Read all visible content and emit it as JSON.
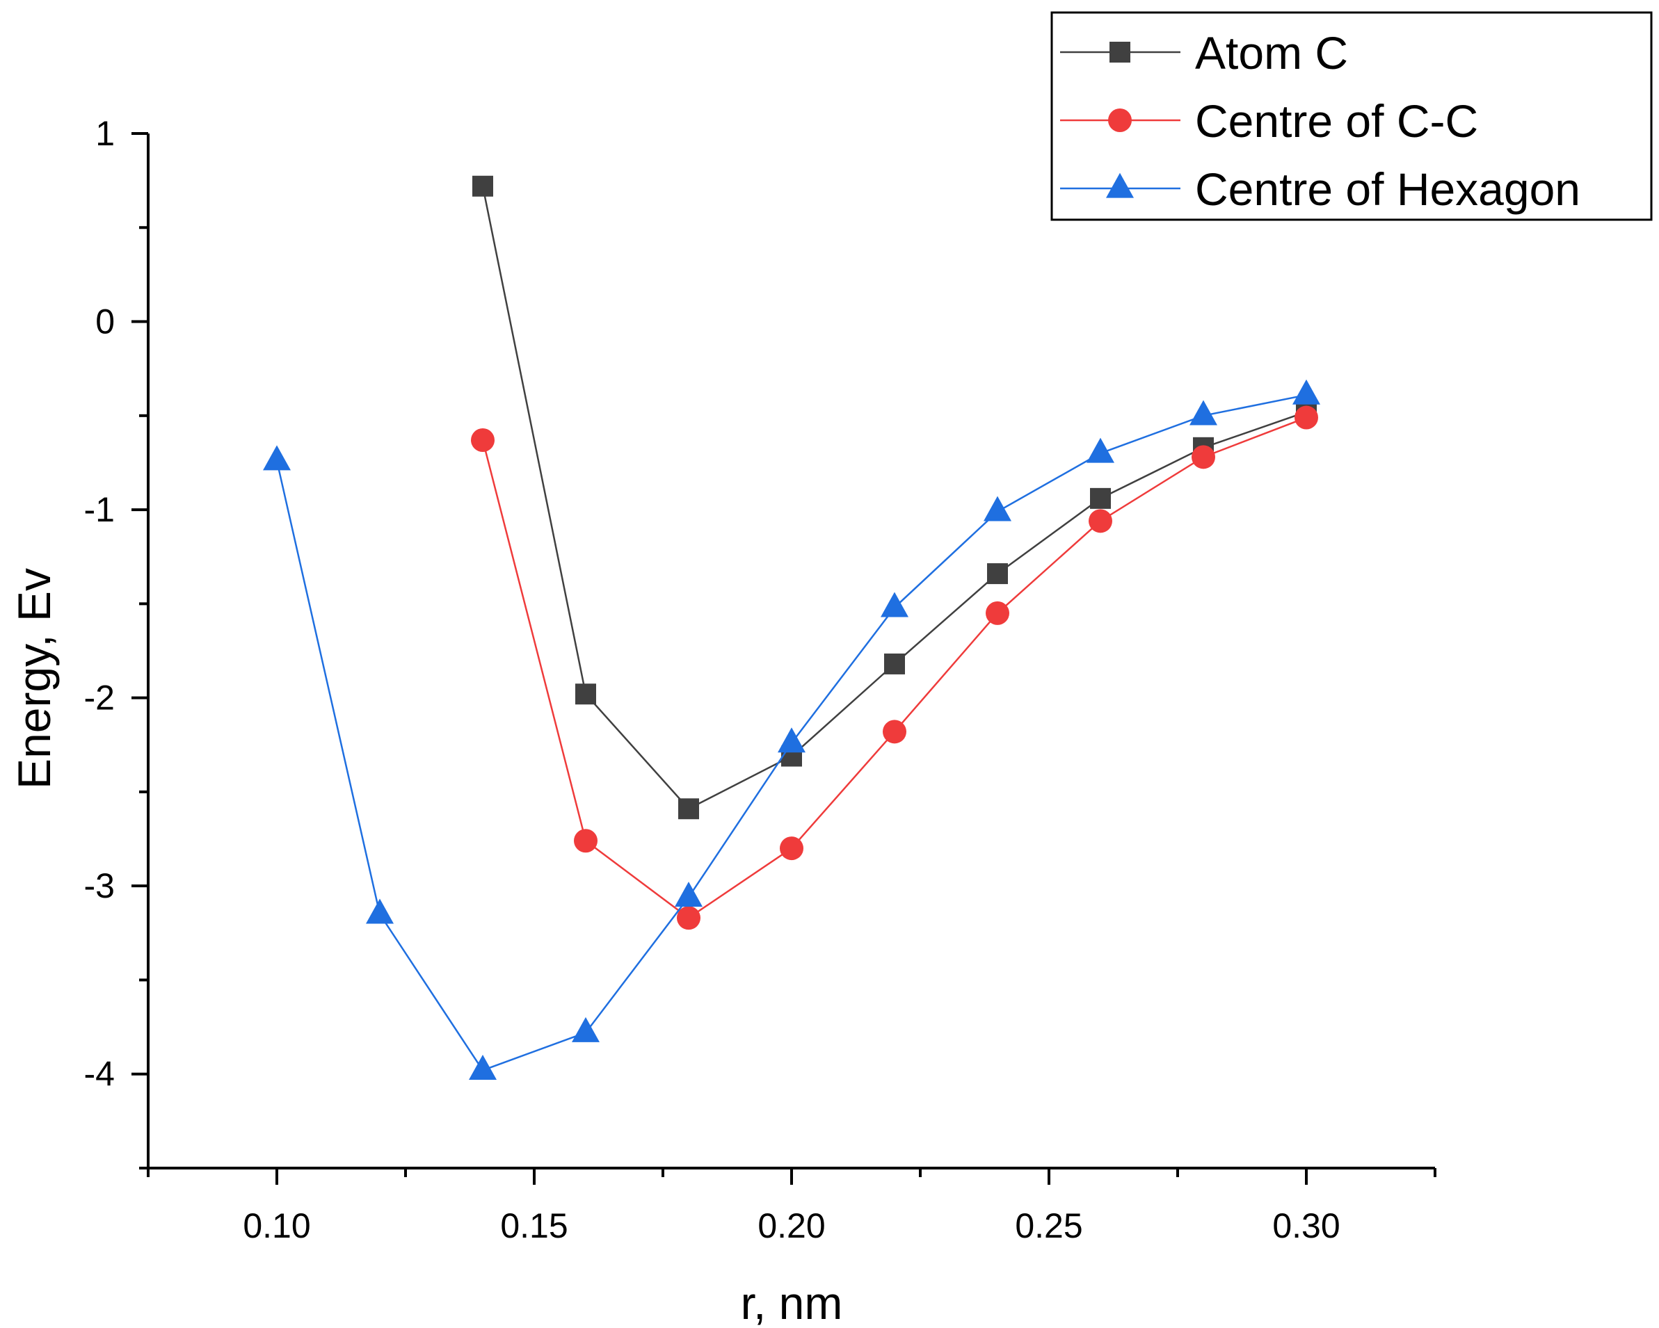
{
  "chart_data": {
    "type": "line",
    "title": "",
    "xlabel": "r, nm",
    "ylabel": "Energy, Ev",
    "xlim": [
      0.075,
      0.325
    ],
    "ylim": [
      -4.5,
      1.0
    ],
    "xticks": [
      0.1,
      0.15,
      0.2,
      0.25,
      0.3
    ],
    "xtick_labels": [
      "0.10",
      "0.15",
      "0.20",
      "0.25",
      "0.30"
    ],
    "yticks": [
      1,
      0,
      -1,
      -2,
      -3,
      -4
    ],
    "ytick_labels": [
      "1",
      "0",
      "-1",
      "-2",
      "-3",
      "-4"
    ],
    "grid": false,
    "legend_position": "top-right",
    "series": [
      {
        "name": "Atom C",
        "color": "#404040",
        "marker": "square",
        "x": [
          0.14,
          0.16,
          0.18,
          0.2,
          0.22,
          0.24,
          0.26,
          0.28,
          0.3
        ],
        "y": [
          0.72,
          -1.98,
          -2.59,
          -2.31,
          -1.82,
          -1.34,
          -0.94,
          -0.67,
          -0.48
        ]
      },
      {
        "name": "Centre of C-C",
        "color": "#ef3b3b",
        "marker": "circle",
        "x": [
          0.14,
          0.16,
          0.18,
          0.2,
          0.22,
          0.24,
          0.26,
          0.28,
          0.3
        ],
        "y": [
          -0.63,
          -2.76,
          -3.17,
          -2.8,
          -2.18,
          -1.55,
          -1.06,
          -0.72,
          -0.51
        ]
      },
      {
        "name": "Centre of Hexagon",
        "color": "#1f6fe0",
        "marker": "triangle",
        "x": [
          0.1,
          0.12,
          0.14,
          0.16,
          0.18,
          0.2,
          0.22,
          0.24,
          0.26,
          0.28,
          0.3
        ],
        "y": [
          -0.74,
          -3.15,
          -3.98,
          -3.78,
          -3.06,
          -2.24,
          -1.52,
          -1.01,
          -0.7,
          -0.5,
          -0.39
        ]
      }
    ]
  }
}
